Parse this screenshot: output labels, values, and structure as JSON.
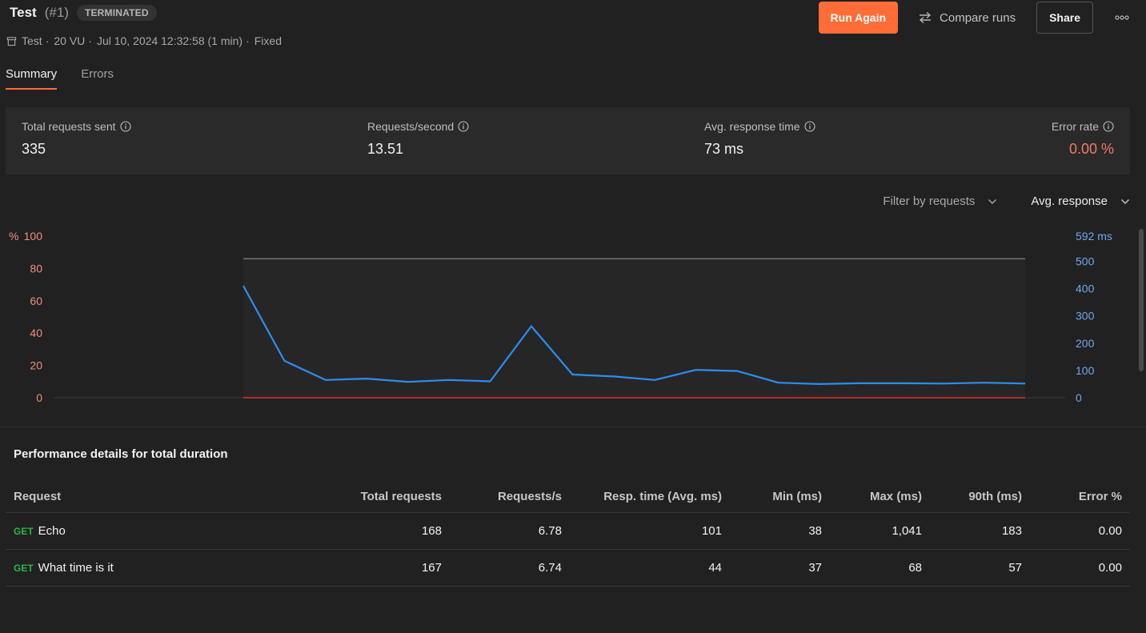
{
  "header": {
    "title": "Test",
    "run_number": "(#1)",
    "status": "TERMINATED",
    "meta": {
      "collection": "Test",
      "vus": "20 VU",
      "date": "Jul 10, 2024 12:32:58 (1 min)",
      "profile": "Fixed",
      "separator": "·"
    },
    "actions": {
      "run_again": "Run Again",
      "compare": "Compare runs",
      "share": "Share"
    }
  },
  "tabs": [
    {
      "label": "Summary",
      "active": true
    },
    {
      "label": "Errors",
      "active": false
    }
  ],
  "stats": [
    {
      "label": "Total requests sent",
      "value": "335"
    },
    {
      "label": "Requests/second",
      "value": "13.51"
    },
    {
      "label": "Avg. response time",
      "value": "73 ms"
    },
    {
      "label": "Error rate",
      "value": "0.00 %"
    }
  ],
  "filters": {
    "requests": "Filter by requests",
    "metric": "Avg. response"
  },
  "chart_data": {
    "type": "line",
    "left_axis": {
      "unit": "%",
      "ticks": [
        "100",
        "80",
        "60",
        "40",
        "20",
        "0"
      ],
      "range": [
        0,
        100
      ]
    },
    "right_axis": {
      "top_label": "592 ms",
      "ticks": [
        "500",
        "400",
        "300",
        "200",
        "100",
        "0"
      ],
      "range": [
        0,
        592
      ]
    },
    "series": [
      {
        "color": "#2b8ef0",
        "axis": "right",
        "values": [
          410,
          135,
          65,
          70,
          58,
          65,
          60,
          262,
          85,
          78,
          65,
          102,
          98,
          55,
          50,
          53,
          53,
          52,
          55,
          52
        ]
      },
      {
        "color": "#e0342c",
        "axis": "left",
        "values": [
          0,
          0,
          0,
          0,
          0,
          0,
          0,
          0,
          0,
          0,
          0,
          0,
          0,
          0,
          0,
          0,
          0,
          0,
          0,
          0
        ]
      },
      {
        "color": "#707070",
        "axis": "left",
        "values": [
          86,
          86,
          86,
          86,
          86,
          86,
          86,
          86,
          86,
          86,
          86,
          86,
          86,
          86,
          86,
          86,
          86,
          86,
          86,
          86
        ]
      }
    ],
    "colors": {
      "left_axis": "#f08f7d",
      "right_axis": "#6fa8ec"
    }
  },
  "performance": {
    "title": "Performance details for total duration",
    "columns": [
      "Request",
      "Total requests",
      "Requests/s",
      "Resp. time (Avg. ms)",
      "Min (ms)",
      "Max (ms)",
      "90th (ms)",
      "Error %"
    ],
    "rows": [
      {
        "method": "GET",
        "name": "Echo",
        "total": "168",
        "rps": "6.78",
        "avg": "101",
        "min": "38",
        "max": "1,041",
        "p90": "183",
        "err": "0.00"
      },
      {
        "method": "GET",
        "name": "What time is it",
        "total": "167",
        "rps": "6.74",
        "avg": "44",
        "min": "37",
        "max": "68",
        "p90": "57",
        "err": "0.00"
      }
    ]
  }
}
